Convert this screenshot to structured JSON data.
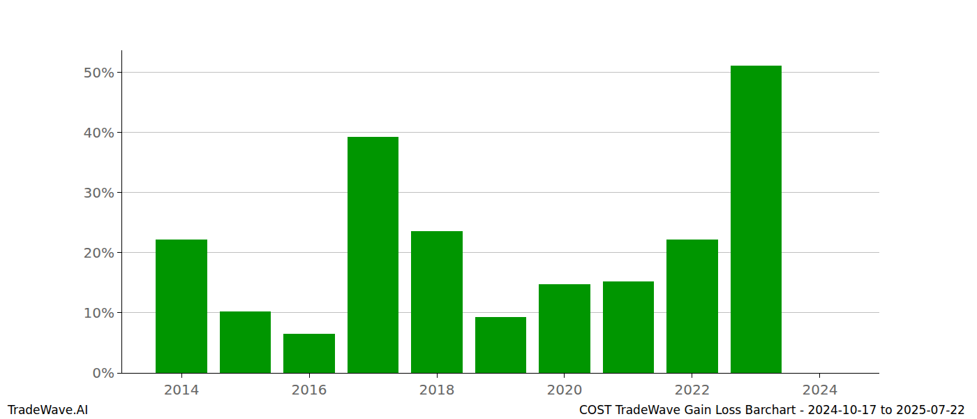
{
  "chart_data": {
    "type": "bar",
    "title": "COST TradeWave Gain Loss Barchart - 2024-10-17 to 2025-07-22",
    "annotations": [
      "TradeWave.AI"
    ],
    "x": [
      2014,
      2015,
      2016,
      2017,
      2018,
      2019,
      2020,
      2021,
      2022,
      2023
    ],
    "values": [
      22.2,
      10.2,
      6.5,
      39.3,
      23.6,
      9.3,
      14.8,
      15.2,
      22.2,
      51.2
    ],
    "color": "#009600",
    "xlim": [
      2013.07,
      2024.93
    ],
    "xticks": [
      2014,
      2016,
      2018,
      2020,
      2022,
      2024
    ],
    "ylim": [
      0,
      53.7
    ],
    "yticks": [
      {
        "value": 0,
        "label": "0%"
      },
      {
        "value": 10,
        "label": "10%"
      },
      {
        "value": 20,
        "label": "20%"
      },
      {
        "value": 30,
        "label": "30%"
      },
      {
        "value": 40,
        "label": "40%"
      },
      {
        "value": 50,
        "label": "50%"
      }
    ],
    "grid": true
  }
}
